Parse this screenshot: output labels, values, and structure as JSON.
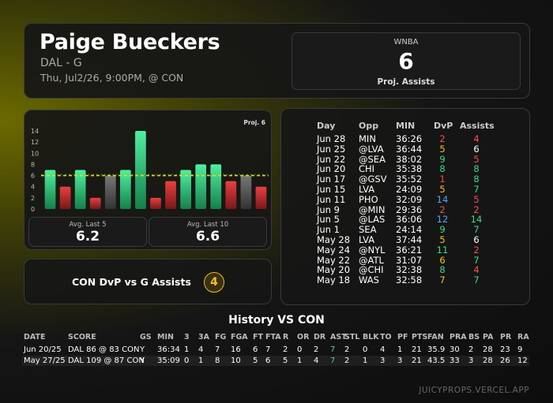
{
  "player": {
    "name": "Paige Bueckers",
    "team_pos": "DAL - G",
    "game_info": "Thu, Jul2/26, 9:00PM, @ CON"
  },
  "projection": {
    "league": "WNBA",
    "value": "6",
    "label": "Proj. Assists"
  },
  "chart_data": {
    "type": "bar",
    "proj_label": "Proj. 6",
    "proj_line": 6,
    "ylim": [
      0,
      14
    ],
    "yticks": [
      "0",
      "2",
      "4",
      "6",
      "8",
      "10",
      "12",
      "14"
    ],
    "values": [
      7,
      4,
      7,
      2,
      6,
      7,
      14,
      2,
      5,
      7,
      8,
      8,
      5,
      6,
      4
    ],
    "colors": [
      "green",
      "red",
      "green",
      "red",
      "gray",
      "green",
      "green",
      "red",
      "red",
      "green",
      "green",
      "green",
      "red",
      "gray",
      "red"
    ],
    "avg_line": 6.2
  },
  "averages": {
    "last5_label": "Avg. Last 5",
    "last5_value": "6.2",
    "last10_label": "Avg. Last 10",
    "last10_value": "6.6"
  },
  "dvp": {
    "text": "CON DvP vs G Assists",
    "rank": "4"
  },
  "game_log": {
    "headers": [
      "Day",
      "Opp",
      "MIN",
      "DvP",
      "Assists"
    ],
    "rows": [
      {
        "day": "Jun 28",
        "opp": "MIN",
        "min": "36:26",
        "dvp": "2",
        "dvp_color": "#ff4b4b",
        "ast": "4",
        "ast_color": "#ff4b4b"
      },
      {
        "day": "Jun 25",
        "opp": "@LVA",
        "min": "36:44",
        "dvp": "5",
        "dvp_color": "#f5c518",
        "ast": "6",
        "ast_color": "#ffffff"
      },
      {
        "day": "Jun 22",
        "opp": "@SEA",
        "min": "38:02",
        "dvp": "9",
        "dvp_color": "#3ddc84",
        "ast": "5",
        "ast_color": "#ff4b4b"
      },
      {
        "day": "Jun 20",
        "opp": "CHI",
        "min": "35:38",
        "dvp": "8",
        "dvp_color": "#3ddc84",
        "ast": "8",
        "ast_color": "#3ddc84"
      },
      {
        "day": "Jun 17",
        "opp": "@GSV",
        "min": "35:52",
        "dvp": "1",
        "dvp_color": "#ff4b4b",
        "ast": "8",
        "ast_color": "#3ddc84"
      },
      {
        "day": "Jun 15",
        "opp": "LVA",
        "min": "24:09",
        "dvp": "5",
        "dvp_color": "#f5c518",
        "ast": "7",
        "ast_color": "#3ddc84"
      },
      {
        "day": "Jun 11",
        "opp": "PHO",
        "min": "32:09",
        "dvp": "14",
        "dvp_color": "#4da6ff",
        "ast": "5",
        "ast_color": "#ff4b4b"
      },
      {
        "day": "Jun 9",
        "opp": "@MIN",
        "min": "29:36",
        "dvp": "2",
        "dvp_color": "#ff4b4b",
        "ast": "2",
        "ast_color": "#ff4b4b"
      },
      {
        "day": "Jun 5",
        "opp": "@LAS",
        "min": "36:06",
        "dvp": "12",
        "dvp_color": "#4da6ff",
        "ast": "14",
        "ast_color": "#3ddc84"
      },
      {
        "day": "Jun 1",
        "opp": "SEA",
        "min": "24:14",
        "dvp": "9",
        "dvp_color": "#3ddc84",
        "ast": "7",
        "ast_color": "#3ddc84"
      },
      {
        "day": "May 28",
        "opp": "LVA",
        "min": "37:44",
        "dvp": "5",
        "dvp_color": "#f5c518",
        "ast": "6",
        "ast_color": "#ffffff"
      },
      {
        "day": "May 24",
        "opp": "@NYL",
        "min": "36:21",
        "dvp": "11",
        "dvp_color": "#3ddc84",
        "ast": "2",
        "ast_color": "#ff4b4b"
      },
      {
        "day": "May 22",
        "opp": "@ATL",
        "min": "31:07",
        "dvp": "6",
        "dvp_color": "#f5c518",
        "ast": "7",
        "ast_color": "#3ddc84"
      },
      {
        "day": "May 20",
        "opp": "@CHI",
        "min": "32:38",
        "dvp": "8",
        "dvp_color": "#3ddc84",
        "ast": "4",
        "ast_color": "#ff4b4b"
      },
      {
        "day": "May 18",
        "opp": "WAS",
        "min": "32:58",
        "dvp": "7",
        "dvp_color": "#f5c518",
        "ast": "7",
        "ast_color": "#3ddc84"
      }
    ]
  },
  "history": {
    "title": "History VS CON",
    "headers": [
      "DATE",
      "SCORE",
      "GS",
      "MIN",
      "3",
      "3A",
      "FG",
      "FGA",
      "FT",
      "FTA",
      "R",
      "OR",
      "DR",
      "AST",
      "STL",
      "BLK",
      "TO",
      "PF",
      "PTS",
      "FAN",
      "PRA",
      "BS",
      "PA",
      "PR",
      "RA"
    ],
    "rows": [
      [
        "Jun 20/25",
        "DAL 86 @ 83 CON",
        "Y",
        "36:34",
        "1",
        "4",
        "7",
        "16",
        "6",
        "7",
        "2",
        "0",
        "2",
        "7",
        "2",
        "0",
        "4",
        "1",
        "21",
        "35.9",
        "30",
        "2",
        "28",
        "23",
        "9"
      ],
      [
        "May 27/25",
        "DAL 109 @ 87 CON",
        "Y",
        "35:09",
        "0",
        "1",
        "8",
        "10",
        "5",
        "6",
        "5",
        "1",
        "4",
        "7",
        "2",
        "1",
        "3",
        "3",
        "21",
        "43.5",
        "33",
        "3",
        "28",
        "26",
        "12"
      ]
    ],
    "ast_color": "#3ddc84"
  },
  "footer": "JUICYPROPS.VERCEL.APP"
}
